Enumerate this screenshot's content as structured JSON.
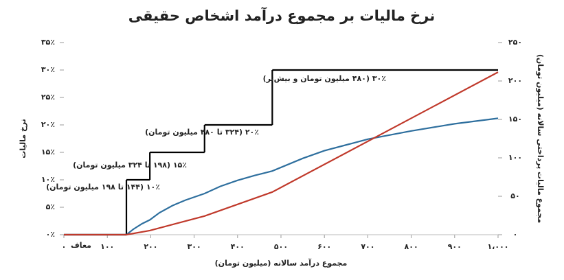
{
  "chart_data": {
    "type": "line",
    "title": "نرخ مالیات بر مجموع درآمد اشخاص حقیقی",
    "xlabel": "مجموع درآمد سالانه (میلیون تومان)",
    "ylabel": "نرخ مالیات",
    "y2label": "مجموع مالیات پرداختی سالانه (میلیون تومان)",
    "xlim": [
      0,
      1000
    ],
    "xticks": [
      {
        "value": 0,
        "label": "۰"
      },
      {
        "value": 100,
        "label": "۱۰۰"
      },
      {
        "value": 200,
        "label": "۲۰۰"
      },
      {
        "value": 300,
        "label": "۳۰۰"
      },
      {
        "value": 400,
        "label": "۴۰۰"
      },
      {
        "value": 500,
        "label": "۵۰۰"
      },
      {
        "value": 600,
        "label": "۶۰۰"
      },
      {
        "value": 700,
        "label": "۷۰۰"
      },
      {
        "value": 800,
        "label": "۸۰۰"
      },
      {
        "value": 900,
        "label": "۹۰۰"
      },
      {
        "value": 1000,
        "label": "۱،۰۰۰"
      }
    ],
    "ylim": [
      0,
      35
    ],
    "yticks": [
      {
        "value": 0,
        "label": "۰٪"
      },
      {
        "value": 5,
        "label": "۵٪"
      },
      {
        "value": 10,
        "label": "۱۰٪"
      },
      {
        "value": 15,
        "label": "۱۵٪"
      },
      {
        "value": 20,
        "label": "۲۰٪"
      },
      {
        "value": 25,
        "label": "۲۵٪"
      },
      {
        "value": 30,
        "label": "۳۰٪"
      },
      {
        "value": 35,
        "label": "۳۵٪"
      }
    ],
    "y2lim": [
      0,
      250
    ],
    "y2ticks": [
      {
        "value": 0,
        "label": "۰"
      },
      {
        "value": 50,
        "label": "۵۰"
      },
      {
        "value": 100,
        "label": "۱۰۰"
      },
      {
        "value": 150,
        "label": "۱۵۰"
      },
      {
        "value": 200,
        "label": "۲۰۰"
      },
      {
        "value": 250,
        "label": "۲۵۰"
      }
    ],
    "series": [
      {
        "color": "#000000",
        "step": true,
        "x": [
          0,
          144,
          198,
          324,
          480
        ],
        "values": [
          0,
          10,
          15,
          20,
          30
        ]
      },
      {
        "color": "#2e6f9e",
        "x": [
          0,
          144,
          160,
          180,
          198,
          220,
          250,
          280,
          324,
          360,
          400,
          440,
          480,
          550,
          600,
          700,
          800,
          900,
          1000
        ],
        "values": [
          0,
          0,
          1.0,
          2.0,
          2.7,
          4.0,
          5.3,
          6.3,
          7.5,
          8.8,
          9.9,
          10.8,
          11.6,
          13.9,
          15.3,
          17.4,
          18.9,
          20.2,
          21.2
        ]
      },
      {
        "color": "#c0392b",
        "axis": "y2",
        "x": [
          0,
          144,
          198,
          324,
          480,
          1000
        ],
        "values": [
          0,
          0,
          5.4,
          24.3,
          55.5,
          211.5
        ]
      }
    ],
    "annotations": [
      "معاف",
      "۱۰٪ (۱۴۴ تا ۱۹۸ میلیون تومان)",
      "۱۵٪ (۱۹۸ تا ۳۲۴ میلیون تومان)",
      "۲۰٪ (۳۲۴ تا ۴۸۰ میلیون تومان)",
      "۳۰٪ (۴۸۰ میلیون تومان و بیش‌تر)"
    ]
  }
}
